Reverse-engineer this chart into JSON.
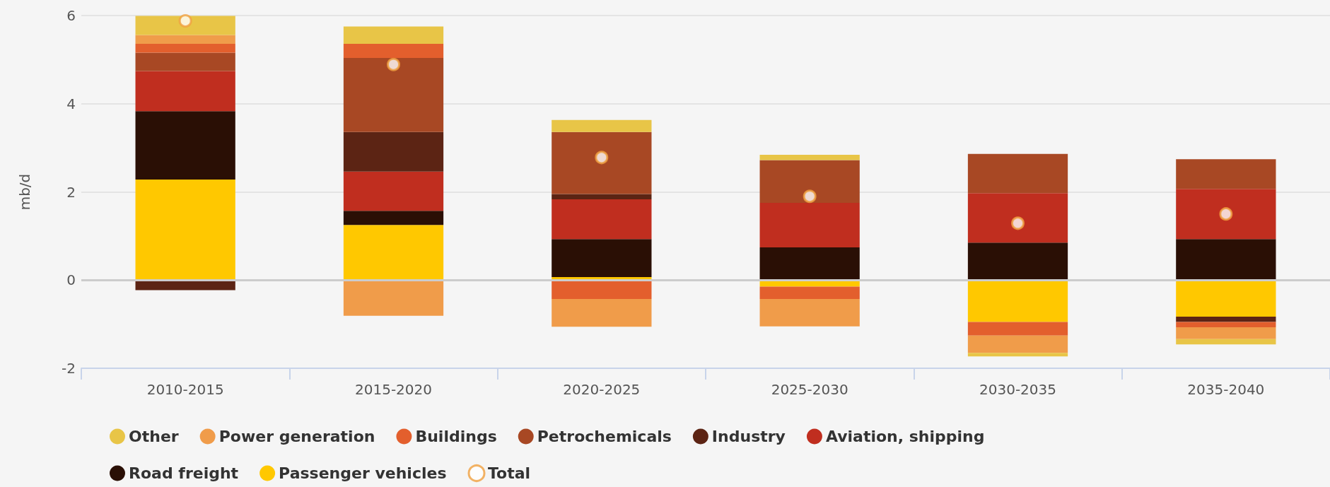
{
  "chart_data": {
    "type": "bar",
    "stacked": true,
    "ylabel": "mb/d",
    "categories": [
      "2010-2015",
      "2015-2020",
      "2020-2025",
      "2025-2030",
      "2030-2035",
      "2035-2040"
    ],
    "series": [
      {
        "name": "Passenger vehicles",
        "color": "#ffc800",
        "values": [
          2.28,
          1.25,
          0.07,
          -0.15,
          -0.95,
          -0.83
        ]
      },
      {
        "name": "Road freight",
        "color": "#2a0f05",
        "values": [
          1.55,
          0.32,
          0.86,
          0.74,
          0.85,
          0.93
        ]
      },
      {
        "name": "Aviation, shipping",
        "color": "#c02e1f",
        "values": [
          0.91,
          0.89,
          0.9,
          1.01,
          1.12,
          1.14
        ]
      },
      {
        "name": "Industry",
        "color": "#5c2414",
        "values": [
          -0.23,
          0.9,
          0.12,
          null,
          null,
          -0.12
        ]
      },
      {
        "name": "Petrochemicals",
        "color": "#a84824",
        "values": [
          0.42,
          1.68,
          1.41,
          0.97,
          0.89,
          0.67
        ]
      },
      {
        "name": "Buildings",
        "color": "#e35f2d",
        "values": [
          0.2,
          0.32,
          -0.43,
          -0.28,
          -0.31,
          -0.12
        ]
      },
      {
        "name": "Power generation",
        "color": "#f09c4a",
        "values": [
          0.2,
          -0.81,
          -0.63,
          -0.62,
          -0.39,
          -0.27
        ]
      },
      {
        "name": "Other",
        "color": "#e8c547",
        "values": [
          0.43,
          0.39,
          0.27,
          0.12,
          -0.08,
          -0.12
        ]
      },
      {
        "name": "Total",
        "type": "scatter",
        "color": "#f0a040",
        "values": [
          5.88,
          4.89,
          2.78,
          1.9,
          1.29,
          1.5
        ]
      }
    ],
    "ylim": [
      -2,
      6
    ],
    "yticks": [
      -2,
      0,
      2,
      4,
      6
    ],
    "grid": "y",
    "legend": "bottom",
    "marker": "circle",
    "ref_lines": [
      {
        "axis": "y",
        "value": 0,
        "color": "#cccccc"
      }
    ]
  }
}
